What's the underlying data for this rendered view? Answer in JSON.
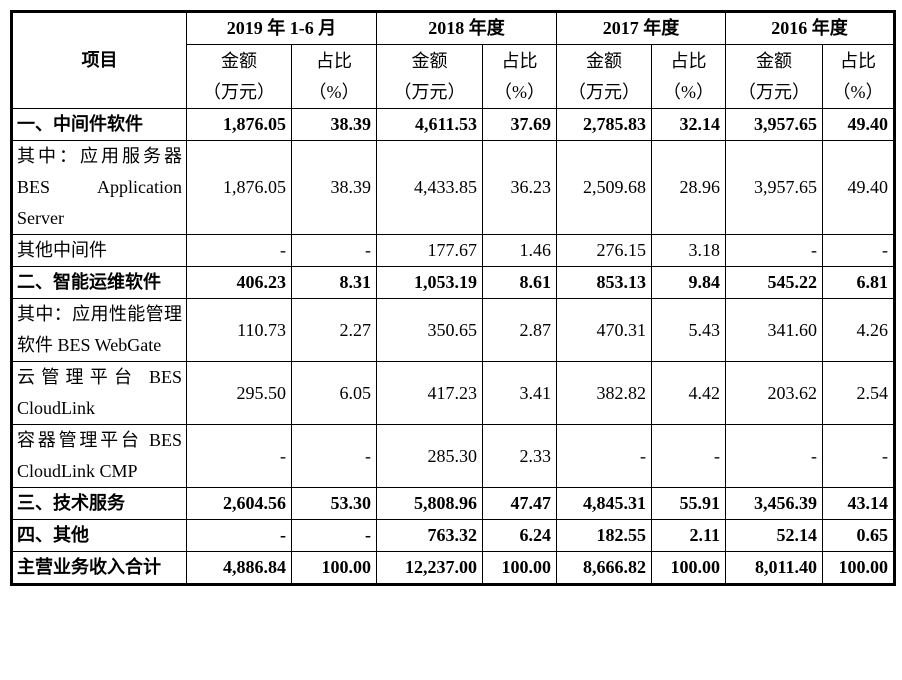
{
  "header": {
    "item": "项目",
    "periods": [
      "2019 年 1-6 月",
      "2018 年度",
      "2017 年度",
      "2016 年度"
    ],
    "amount": "金额",
    "amount_unit": "（万元）",
    "ratio": "占比",
    "ratio_unit": "（%）"
  },
  "rows": [
    {
      "name": "一、中间件软件",
      "bold": true,
      "values": [
        "1,876.05",
        "38.39",
        "4,611.53",
        "37.69",
        "2,785.83",
        "32.14",
        "3,957.65",
        "49.40"
      ]
    },
    {
      "name": "其中：应用服务器 BES Application Server",
      "bold": false,
      "values": [
        "1,876.05",
        "38.39",
        "4,433.85",
        "36.23",
        "2,509.68",
        "28.96",
        "3,957.65",
        "49.40"
      ]
    },
    {
      "name": "其他中间件",
      "bold": false,
      "values": [
        "-",
        "-",
        "177.67",
        "1.46",
        "276.15",
        "3.18",
        "-",
        "-"
      ]
    },
    {
      "name": "二、智能运维软件",
      "bold": true,
      "values": [
        "406.23",
        "8.31",
        "1,053.19",
        "8.61",
        "853.13",
        "9.84",
        "545.22",
        "6.81"
      ]
    },
    {
      "name": "其中：应用性能管理软件 BES WebGate",
      "bold": false,
      "values": [
        "110.73",
        "2.27",
        "350.65",
        "2.87",
        "470.31",
        "5.43",
        "341.60",
        "4.26"
      ]
    },
    {
      "name": "云管理平台 BES CloudLink",
      "bold": false,
      "values": [
        "295.50",
        "6.05",
        "417.23",
        "3.41",
        "382.82",
        "4.42",
        "203.62",
        "2.54"
      ]
    },
    {
      "name": "容器管理平台 BES CloudLink CMP",
      "bold": false,
      "values": [
        "-",
        "-",
        "285.30",
        "2.33",
        "-",
        "-",
        "-",
        "-"
      ]
    },
    {
      "name": "三、技术服务",
      "bold": true,
      "values": [
        "2,604.56",
        "53.30",
        "5,808.96",
        "47.47",
        "4,845.31",
        "55.91",
        "3,456.39",
        "43.14"
      ]
    },
    {
      "name": "四、其他",
      "bold": true,
      "values": [
        "-",
        "-",
        "763.32",
        "6.24",
        "182.55",
        "2.11",
        "52.14",
        "0.65"
      ]
    },
    {
      "name": "主营业务收入合计",
      "bold": true,
      "center": true,
      "values": [
        "4,886.84",
        "100.00",
        "12,237.00",
        "100.00",
        "8,666.82",
        "100.00",
        "8,011.40",
        "100.00"
      ]
    }
  ]
}
